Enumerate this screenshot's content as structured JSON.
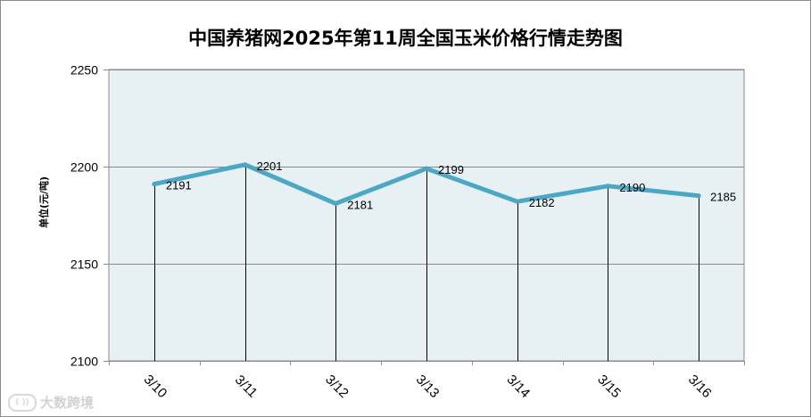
{
  "chart_data": {
    "type": "line",
    "title": "中国养猪网2025年第11周全国玉米价格行情走势图",
    "ylabel": "单位(元/吨)",
    "xlabel": "",
    "categories": [
      "3/10",
      "3/11",
      "3/12",
      "3/13",
      "3/14",
      "3/15",
      "3/16"
    ],
    "series": [
      {
        "values": [
          2191,
          2201,
          2181,
          2199,
          2182,
          2190,
          2185
        ]
      }
    ],
    "data_labels": [
      "2191",
      "2201",
      "2181",
      "2199",
      "2182",
      "2190",
      "2185"
    ],
    "ylim": [
      2100,
      2250
    ],
    "yticks": [
      "2250",
      "2200",
      "2150",
      "2100"
    ],
    "grid": true,
    "drop_lines": true,
    "colors": {
      "line": "#4ba8c4",
      "plot_bg": "#e7f0f3",
      "grid": "#8a8a8a"
    }
  },
  "watermark": {
    "text": "大数跨境",
    "logo": "logo-icon"
  }
}
